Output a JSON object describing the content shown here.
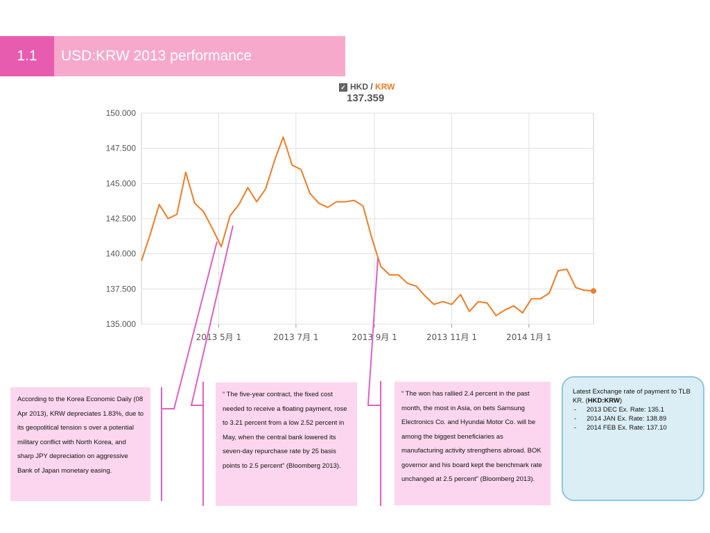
{
  "header": {
    "section_number": "1.1",
    "title": "USD:KRW 2013 performance"
  },
  "legend": {
    "base": "HKD",
    "separator": " / ",
    "quote": "KRW",
    "current_value": "137.359",
    "checked": true
  },
  "chart_data": {
    "type": "line",
    "title": "",
    "xlabel": "",
    "ylabel": "",
    "y_ticks": [
      "150.000",
      "147.500",
      "145.000",
      "142.500",
      "140.000",
      "137.500",
      "135.000"
    ],
    "ylim": [
      135.0,
      150.0
    ],
    "x_ticks": [
      "2013 5月 1",
      "2013 7月 1",
      "2013 9月 1",
      "2013 11月 1",
      "2014 1月 1"
    ],
    "grid": true,
    "series": [
      {
        "name": "HKD / KRW",
        "color": "#f07c22",
        "x": [
          "2013-03-01",
          "2013-03-08",
          "2013-03-15",
          "2013-03-22",
          "2013-03-29",
          "2013-04-05",
          "2013-04-12",
          "2013-04-19",
          "2013-04-26",
          "2013-05-03",
          "2013-05-10",
          "2013-05-17",
          "2013-05-24",
          "2013-05-31",
          "2013-06-07",
          "2013-06-14",
          "2013-06-21",
          "2013-06-28",
          "2013-07-05",
          "2013-07-12",
          "2013-07-19",
          "2013-07-26",
          "2013-08-02",
          "2013-08-09",
          "2013-08-16",
          "2013-08-23",
          "2013-08-30",
          "2013-09-06",
          "2013-09-13",
          "2013-09-20",
          "2013-09-27",
          "2013-10-04",
          "2013-10-11",
          "2013-10-18",
          "2013-10-25",
          "2013-11-01",
          "2013-11-08",
          "2013-11-15",
          "2013-11-22",
          "2013-11-29",
          "2013-12-06",
          "2013-12-13",
          "2013-12-20",
          "2013-12-27",
          "2014-01-03",
          "2014-01-10",
          "2014-01-17",
          "2014-01-24",
          "2014-01-31",
          "2014-02-07",
          "2014-02-14",
          "2014-02-21"
        ],
        "y": [
          139.5,
          141.4,
          143.5,
          142.5,
          142.8,
          145.8,
          143.6,
          143.0,
          141.8,
          140.5,
          142.7,
          143.5,
          144.7,
          143.7,
          144.6,
          146.6,
          148.3,
          146.3,
          146.0,
          144.3,
          143.6,
          143.3,
          143.7,
          143.7,
          143.8,
          143.4,
          141.1,
          139.1,
          138.5,
          138.5,
          137.9,
          137.7,
          137.0,
          136.4,
          136.6,
          136.4,
          137.1,
          135.9,
          136.6,
          136.5,
          135.6,
          136.0,
          136.3,
          135.8,
          136.8,
          136.8,
          137.2,
          138.8,
          138.9,
          137.6,
          137.4,
          137.359
        ]
      }
    ]
  },
  "annotations": [
    {
      "text": "According to the Korea Economic Daily (08 Apr 2013), KRW depreciates 1.83%, due  to its geopolitical tension s over a potential military conflict with North Korea, and sharp JPY depreciation on aggressive Bank of Japan monetary easing."
    },
    {
      "text": "“ The five-year contract, the fixed cost needed to receive a floating payment, rose to 3.21 percent from a low 2.52 percent in May, when the central bank lowered its seven-day repurchase rate by 25 basis points to 2.5 percent” (Bloomberg 2013)."
    },
    {
      "text": "“ The won has rallied 2.4 percent in the past month, the most in Asia, on bets Samsung Electronics Co. and Hyundai Motor Co. will be among the biggest beneficiaries as manufacturing activity strengthens abroad. BOK governor and his board kept the benchmark rate unchanged at 2.5 percent” (Bloomberg 2013)."
    }
  ],
  "info_box": {
    "line1": "Latest Exchange rate of payment to TLB KR. (",
    "bold": "HKD:KRW",
    "line1_end": ")",
    "items": [
      "2013 DEC Ex. Rate: 135.1",
      "2014 JAN Ex. Rate: 138.89",
      "2014 FEB Ex. Rate: 137.10"
    ]
  },
  "colors": {
    "accent": "#e85cb0",
    "title_bar": "#f7a9cc",
    "line": "#f07c22",
    "connector": "#e05fc0",
    "note_bg": "#fcd6ee",
    "info_bg": "#dbeef6",
    "info_border": "#8fc6da"
  }
}
